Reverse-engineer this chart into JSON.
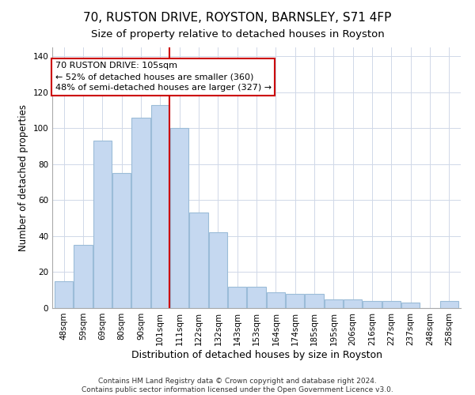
{
  "title": "70, RUSTON DRIVE, ROYSTON, BARNSLEY, S71 4FP",
  "subtitle": "Size of property relative to detached houses in Royston",
  "xlabel": "Distribution of detached houses by size in Royston",
  "ylabel": "Number of detached properties",
  "bar_labels": [
    "48sqm",
    "59sqm",
    "69sqm",
    "80sqm",
    "90sqm",
    "101sqm",
    "111sqm",
    "122sqm",
    "132sqm",
    "143sqm",
    "153sqm",
    "164sqm",
    "174sqm",
    "185sqm",
    "195sqm",
    "206sqm",
    "216sqm",
    "227sqm",
    "237sqm",
    "248sqm",
    "258sqm"
  ],
  "bar_values": [
    15,
    35,
    93,
    75,
    106,
    113,
    100,
    53,
    42,
    12,
    12,
    9,
    8,
    8,
    5,
    5,
    4,
    4,
    3,
    0,
    4
  ],
  "bar_color": "#c5d8f0",
  "bar_edge_color": "#9bbcd8",
  "highlight_line_color": "#cc0000",
  "annotation_line1": "70 RUSTON DRIVE: 105sqm",
  "annotation_line2": "← 52% of detached houses are smaller (360)",
  "annotation_line3": "48% of semi-detached houses are larger (327) →",
  "annotation_box_color": "#ffffff",
  "annotation_box_edge": "#cc0000",
  "ylim": [
    0,
    145
  ],
  "yticks": [
    0,
    20,
    40,
    60,
    80,
    100,
    120,
    140
  ],
  "footer": "Contains HM Land Registry data © Crown copyright and database right 2024.\nContains public sector information licensed under the Open Government Licence v3.0.",
  "title_fontsize": 11,
  "subtitle_fontsize": 9.5,
  "xlabel_fontsize": 9,
  "ylabel_fontsize": 8.5,
  "tick_fontsize": 7.5,
  "footer_fontsize": 6.5,
  "annot_fontsize": 8
}
